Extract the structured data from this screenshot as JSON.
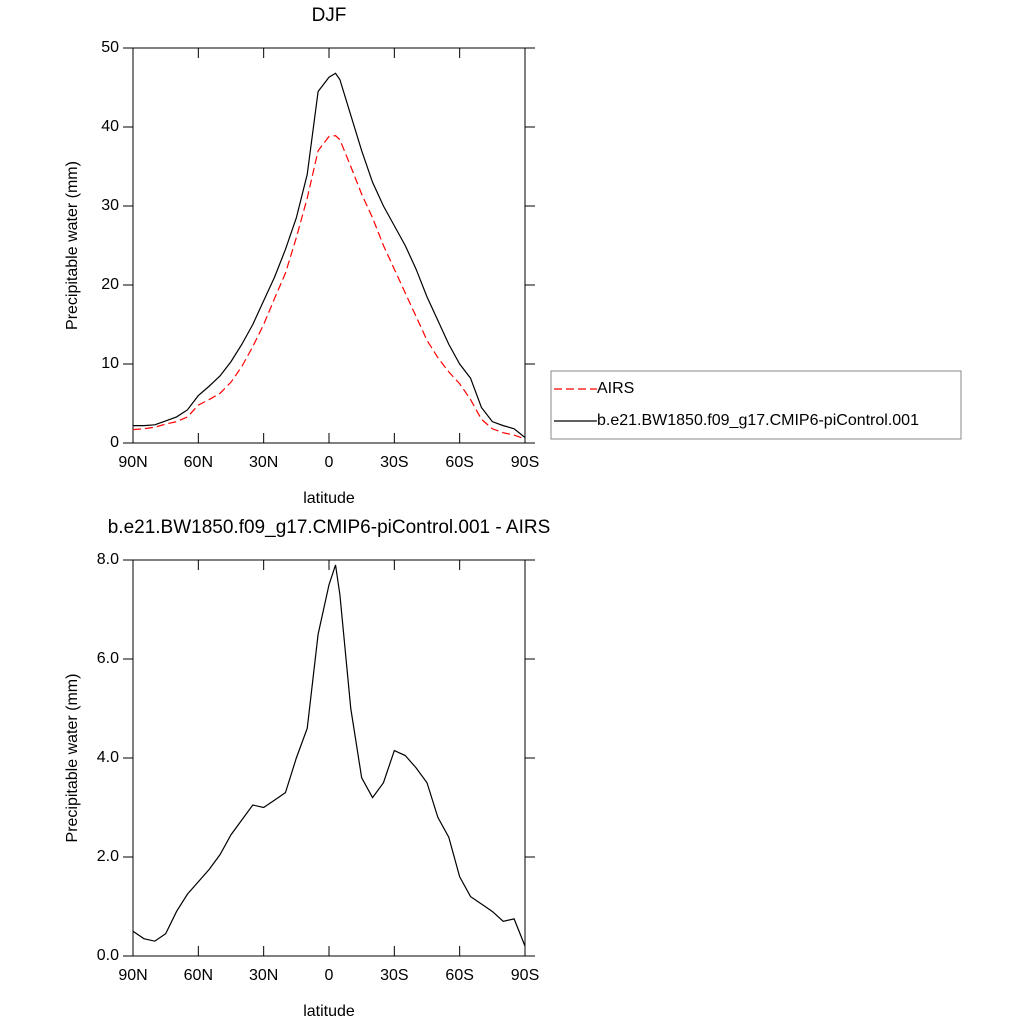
{
  "chart_data": [
    {
      "type": "line",
      "title": "DJF",
      "xlabel": "latitude",
      "ylabel": "Precipitable water (mm)",
      "x": [
        90,
        85,
        80,
        75,
        70,
        65,
        60,
        55,
        50,
        45,
        40,
        35,
        30,
        25,
        20,
        15,
        10,
        5,
        0,
        -3,
        -5,
        -10,
        -15,
        -20,
        -25,
        -30,
        -35,
        -40,
        -45,
        -50,
        -55,
        -60,
        -65,
        -70,
        -75,
        -80,
        -85,
        -90
      ],
      "xlim": [
        90,
        -90
      ],
      "xticks": [
        {
          "value": 90,
          "label": "90N"
        },
        {
          "value": 60,
          "label": "60N"
        },
        {
          "value": 30,
          "label": "30N"
        },
        0,
        {
          "value": -30,
          "label": "30S"
        },
        {
          "value": -60,
          "label": "60S"
        },
        {
          "value": -90,
          "label": "90S"
        }
      ],
      "ylim": [
        0,
        50
      ],
      "yticks": [
        0,
        10,
        20,
        30,
        40,
        50
      ],
      "legend": "right",
      "series": [
        {
          "name": "AIRS",
          "color": "#ff0000",
          "line_style": "dashed",
          "values": [
            1.7,
            1.8,
            2.0,
            2.4,
            2.7,
            3.3,
            4.8,
            5.5,
            6.3,
            7.7,
            9.7,
            12.2,
            15,
            18.3,
            21.5,
            26,
            31,
            37,
            38.8,
            38.9,
            38.4,
            35,
            31.5,
            28.5,
            25,
            22,
            19,
            16,
            13,
            10.8,
            9,
            7.5,
            5.5,
            3,
            1.8,
            1.3,
            1.0,
            0.5
          ]
        },
        {
          "name": "b.e21.BW1850.f09_g17.CMIP6-piControl.001",
          "color": "#000000",
          "line_style": "solid",
          "values": [
            2.2,
            2.2,
            2.3,
            2.8,
            3.3,
            4.2,
            6.0,
            7.2,
            8.5,
            10.3,
            12.5,
            15.0,
            18.0,
            21.0,
            24.5,
            28.5,
            34,
            44.5,
            46.3,
            46.8,
            46,
            41.5,
            37,
            33,
            30,
            27.5,
            25,
            22,
            18.5,
            15.5,
            12.5,
            10,
            8.2,
            4.5,
            2.7,
            2.2,
            1.8,
            0.7
          ]
        }
      ]
    },
    {
      "type": "line",
      "title": "b.e21.BW1850.f09_g17.CMIP6-piControl.001 - AIRS",
      "xlabel": "latitude",
      "ylabel": "Precipitable water (mm)",
      "x": [
        90,
        85,
        80,
        75,
        70,
        65,
        60,
        55,
        50,
        45,
        40,
        35,
        30,
        25,
        20,
        15,
        10,
        5,
        0,
        -3,
        -5,
        -10,
        -15,
        -20,
        -25,
        -30,
        -35,
        -40,
        -45,
        -50,
        -55,
        -60,
        -65,
        -70,
        -75,
        -80,
        -85,
        -90
      ],
      "xlim": [
        90,
        -90
      ],
      "xticks": [
        {
          "value": 90,
          "label": "90N"
        },
        {
          "value": 60,
          "label": "60N"
        },
        {
          "value": 30,
          "label": "30N"
        },
        0,
        {
          "value": -30,
          "label": "30S"
        },
        {
          "value": -60,
          "label": "60S"
        },
        {
          "value": -90,
          "label": "90S"
        }
      ],
      "ylim": [
        0,
        8
      ],
      "yticks": [
        {
          "value": 0,
          "label": "0.0"
        },
        {
          "value": 2,
          "label": "2.0"
        },
        {
          "value": 4,
          "label": "4.0"
        },
        {
          "value": 6,
          "label": "6.0"
        },
        {
          "value": 8,
          "label": "8.0"
        }
      ],
      "color": "#000000",
      "values": [
        0.5,
        0.35,
        0.3,
        0.45,
        0.9,
        1.25,
        1.5,
        1.75,
        2.05,
        2.45,
        2.75,
        3.05,
        3.0,
        3.15,
        3.3,
        4.0,
        4.6,
        6.5,
        7.5,
        7.9,
        7.3,
        5.0,
        3.6,
        3.2,
        3.5,
        4.15,
        4.05,
        3.8,
        3.5,
        2.8,
        2.4,
        1.6,
        1.2,
        1.05,
        0.9,
        0.7,
        0.75,
        0.2
      ]
    }
  ]
}
